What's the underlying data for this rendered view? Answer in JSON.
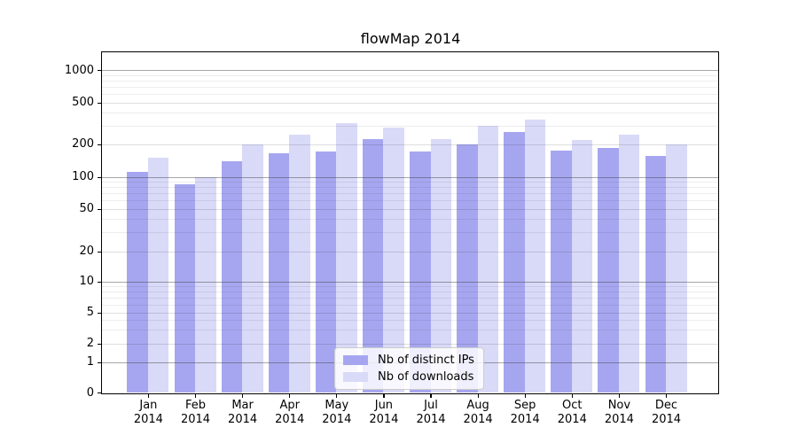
{
  "chart": {
    "title": "flowMap 2014",
    "colors": {
      "ips": "#a6a6f0",
      "downloads": "#d9d9f8"
    },
    "legend": {
      "items": [
        {
          "key": "ips",
          "label": "Nb of distinct IPs"
        },
        {
          "key": "downloads",
          "label": "Nb of downloads"
        }
      ]
    }
  },
  "chart_data": {
    "type": "bar",
    "title": "flowMap 2014",
    "categories": [
      "Jan 2014",
      "Feb 2014",
      "Mar 2014",
      "Apr 2014",
      "May 2014",
      "Jun 2014",
      "Jul 2014",
      "Aug 2014",
      "Sep 2014",
      "Oct 2014",
      "Nov 2014",
      "Dec 2014"
    ],
    "series": [
      {
        "key": "ips",
        "name": "Nb of distinct IPs",
        "values": [
          110,
          85,
          140,
          165,
          170,
          225,
          170,
          200,
          260,
          175,
          185,
          155
        ]
      },
      {
        "key": "downloads",
        "name": "Nb of downloads",
        "values": [
          150,
          100,
          200,
          245,
          320,
          290,
          225,
          300,
          345,
          220,
          245,
          200
        ]
      }
    ],
    "xlabel": "",
    "ylabel": "",
    "yscale": "log-like",
    "yticks": [
      0,
      1,
      2,
      5,
      10,
      20,
      50,
      100,
      200,
      500,
      1000
    ],
    "ylim": [
      0,
      1400
    ],
    "grid": "horizontal, minor log gridlines, dark lines at powers of ten",
    "legend_position": "inside lower-center"
  }
}
